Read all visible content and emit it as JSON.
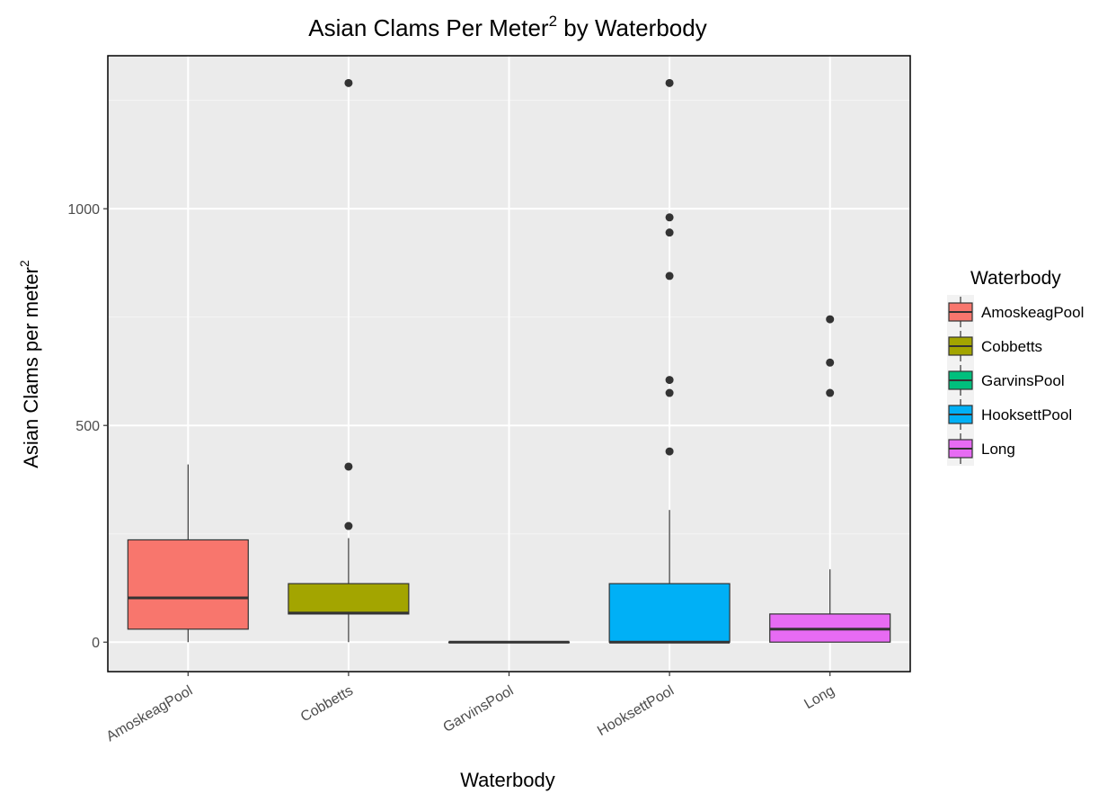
{
  "chart_data": {
    "type": "box",
    "title": "Asian Clams Per Meter",
    "title_superscript": "2",
    "title_suffix": " by Waterbody",
    "xlabel": "Waterbody",
    "ylabel": "Asian Clams per meter",
    "ylabel_superscript": "2",
    "ylim": [
      -68,
      1353
    ],
    "yticks": [
      0,
      500,
      1000
    ],
    "grid": true,
    "legend": {
      "title": "Waterbody",
      "placement": "right",
      "entries": [
        "AmoskeagPool",
        "Cobbetts",
        "GarvinsPool",
        "HooksettPool",
        "Long"
      ]
    },
    "categories": [
      "AmoskeagPool",
      "Cobbetts",
      "GarvinsPool",
      "HooksettPool",
      "Long"
    ],
    "series": [
      {
        "name": "AmoskeagPool",
        "color": "#F8766D",
        "min": 0,
        "q1": 30,
        "median": 102,
        "q3": 236,
        "max": 410,
        "outliers": []
      },
      {
        "name": "Cobbetts",
        "color": "#A3A500",
        "min": 0,
        "q1": 65,
        "median": 67,
        "q3": 135,
        "max": 240,
        "outliers": [
          268,
          405,
          1290
        ]
      },
      {
        "name": "GarvinsPool",
        "color": "#00BF7D",
        "min": 0,
        "q1": 0,
        "median": 0,
        "q3": 0,
        "max": 0,
        "outliers": []
      },
      {
        "name": "HooksettPool",
        "color": "#00B0F6",
        "min": 0,
        "q1": 0,
        "median": 0,
        "q3": 135,
        "max": 305,
        "outliers": [
          440,
          575,
          605,
          845,
          945,
          980,
          1290
        ]
      },
      {
        "name": "Long",
        "color": "#E76BF3",
        "min": 0,
        "q1": 0,
        "median": 30,
        "q3": 65,
        "max": 168,
        "outliers": [
          575,
          645,
          745
        ]
      }
    ]
  }
}
